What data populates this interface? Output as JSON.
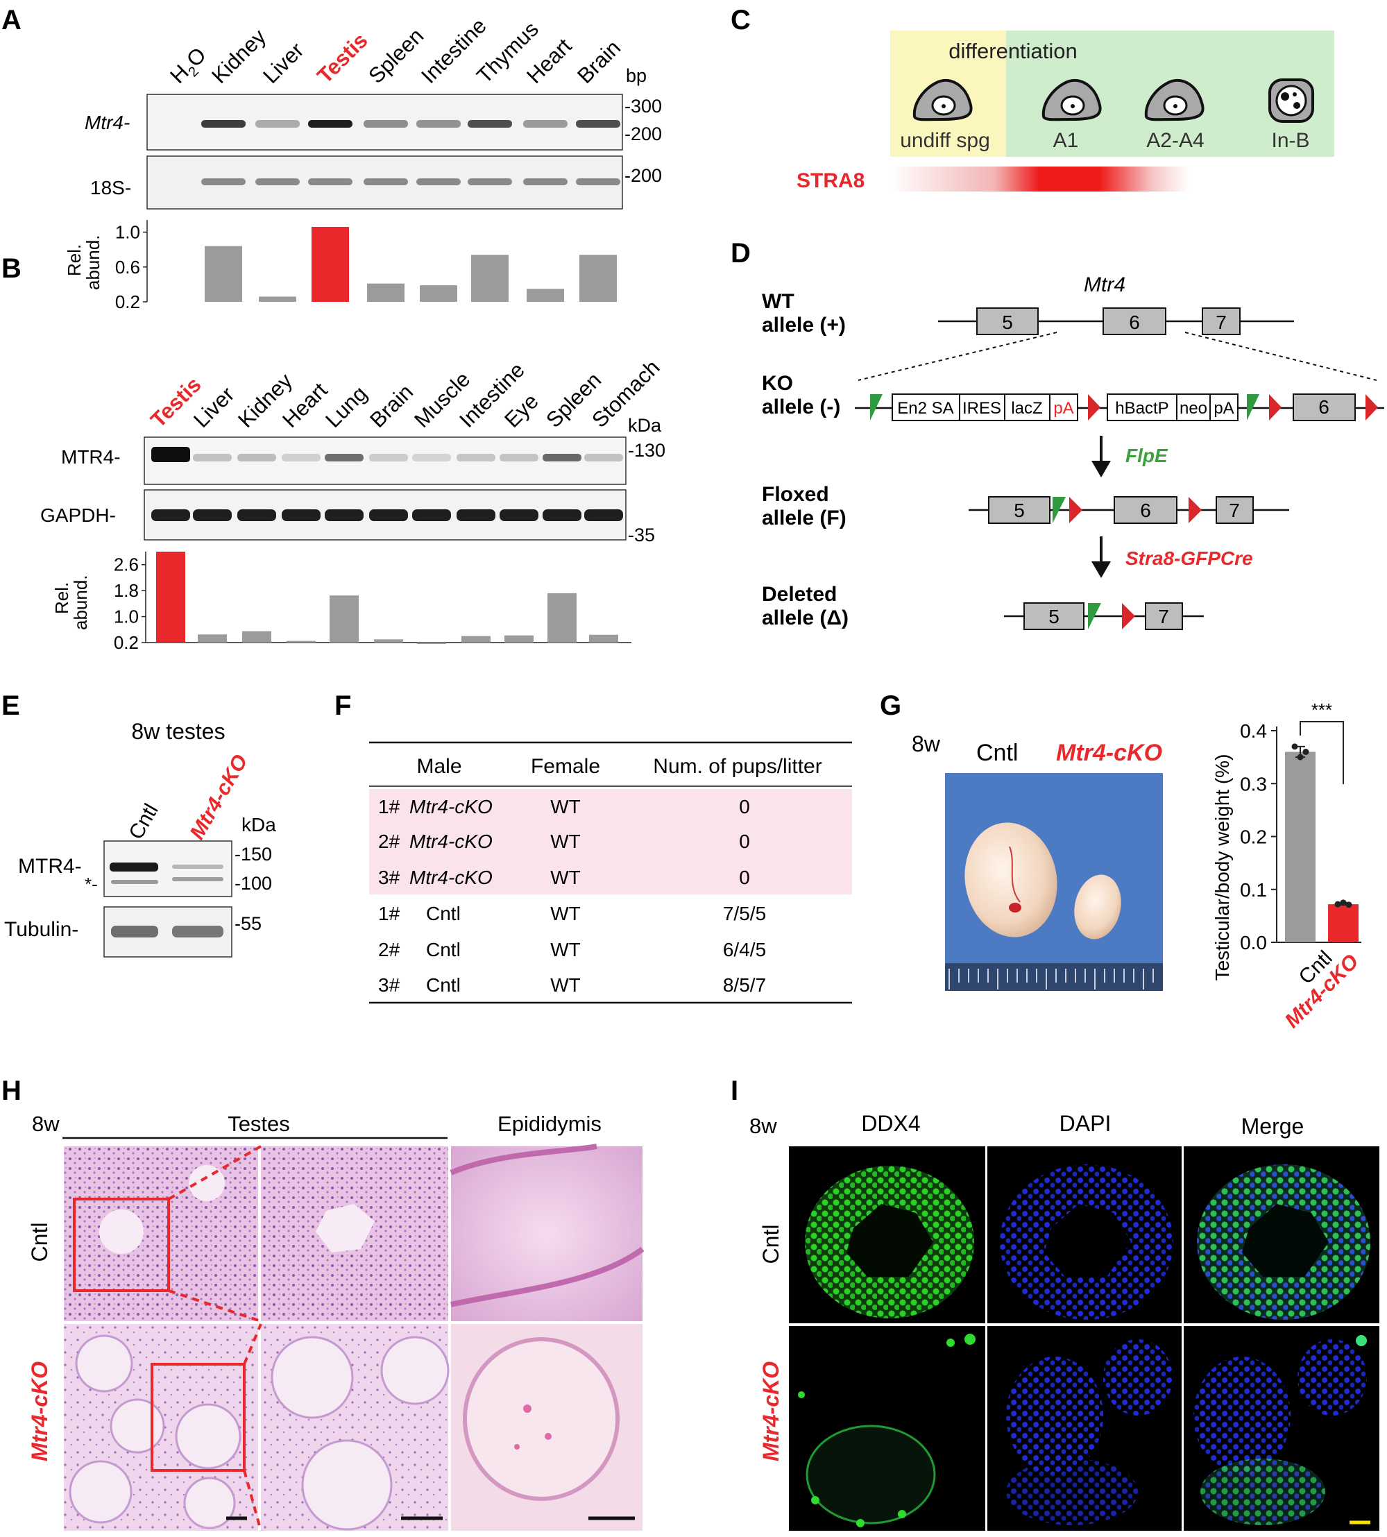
{
  "panels": {
    "A": "A",
    "B": "B",
    "C": "C",
    "D": "D",
    "E": "E",
    "F": "F",
    "G": "G",
    "H": "H",
    "I": "I"
  },
  "colors": {
    "red": "#e8282b",
    "gray": "#9b9b9d",
    "green": "#3ca03c",
    "yellow_bg": "#fbf6bd",
    "green_bg": "#cfeccc",
    "pink_row": "#fbe3ea"
  },
  "panelA": {
    "lanes": [
      "H2O",
      "Kidney",
      "Liver",
      "Testis",
      "Spleen",
      "Intestine",
      "Thymus",
      "Heart",
      "Brain"
    ],
    "h2o": {
      "main": "H",
      "sub": "2",
      "tail": "O"
    },
    "highlight": "Testis",
    "unit": "bp",
    "gel1_label": "Mtr4-",
    "gel2_label": "18S-",
    "markers1": [
      "-300",
      "-200"
    ],
    "markers2": [
      "-200"
    ],
    "ylabel_line1": "Rel.",
    "ylabel_line2": "abund.",
    "yticks": [
      "1.0",
      "0.6",
      "0.2"
    ]
  },
  "panelB": {
    "lanes": [
      "Testis",
      "Liver",
      "Kidney",
      "Heart",
      "Lung",
      "Brain",
      "Muscle",
      "Intestine",
      "Eye",
      "Spleen",
      "Stomach"
    ],
    "highlight": "Testis",
    "unit": "kDa",
    "blot1_label": "MTR4-",
    "blot2_label": "GAPDH-",
    "markers1": [
      "-130"
    ],
    "markers2": [
      "-35"
    ],
    "ylabel_line1": "Rel.",
    "ylabel_line2": "abund.",
    "yticks": [
      "2.6",
      "1.8",
      "1.0",
      "0.2"
    ]
  },
  "panelC": {
    "header": "differentiation",
    "stages": [
      "undiff spg",
      "A1",
      "A2-A4",
      "In-B"
    ],
    "marker": "STRA8"
  },
  "panelD": {
    "gene": "Mtr4",
    "alleles": [
      {
        "line1": "WT",
        "line2": "allele (+)"
      },
      {
        "line1": "KO",
        "line2": "allele (-)"
      },
      {
        "line1": "Floxed",
        "line2": "allele (F)"
      },
      {
        "line1": "Deleted",
        "line2": "allele (Δ)"
      }
    ],
    "exons": [
      "5",
      "6",
      "7"
    ],
    "cassette": [
      "En2 SA",
      "IRES",
      "lacZ",
      "pA",
      "hBactP",
      "neo",
      "pA"
    ],
    "step1": "FlpE",
    "step2": "Stra8-GFPCre"
  },
  "panelE": {
    "title": "8w testes",
    "lanes": [
      "Cntl",
      "Mtr4-cKO"
    ],
    "unit": "kDa",
    "blot1_label": "MTR4-",
    "star": "*-",
    "blot2_label": "Tubulin-",
    "markers1": [
      "-150",
      "-100"
    ],
    "markers2": [
      "-55"
    ]
  },
  "panelF": {
    "headers": [
      "Male",
      "Female",
      "Num. of pups/litter"
    ],
    "rows": [
      {
        "num": "1#",
        "male": "Mtr4-cKO",
        "female": "WT",
        "pups": "0"
      },
      {
        "num": "2#",
        "male": "Mtr4-cKO",
        "female": "WT",
        "pups": "0"
      },
      {
        "num": "3#",
        "male": "Mtr4-cKO",
        "female": "WT",
        "pups": "0"
      },
      {
        "num": "1#",
        "male": "Cntl",
        "female": "WT",
        "pups": "7/5/5"
      },
      {
        "num": "2#",
        "male": "Cntl",
        "female": "WT",
        "pups": "6/4/5"
      },
      {
        "num": "3#",
        "male": "Cntl",
        "female": "WT",
        "pups": "8/5/7"
      }
    ]
  },
  "panelG": {
    "age": "8w",
    "cntl": "Cntl",
    "cko": "Mtr4-cKO",
    "sig": "***",
    "ylabel": "Testicular/body weight (%)"
  },
  "panelH": {
    "age": "8w",
    "group1": "Testes",
    "group2": "Epididymis",
    "rows": [
      "Cntl",
      "Mtr4-cKO"
    ]
  },
  "panelI": {
    "age": "8w",
    "channels": [
      "DDX4",
      "DAPI",
      "Merge"
    ],
    "rows": [
      "Cntl",
      "Mtr4-cKO"
    ]
  },
  "chart_data": [
    {
      "type": "bar",
      "categories": [
        "H2O",
        "Kidney",
        "Liver",
        "Testis",
        "Spleen",
        "Intestine",
        "Thymus",
        "Heart",
        "Brain"
      ],
      "values": [
        0.2,
        0.84,
        0.26,
        1.06,
        0.41,
        0.39,
        0.74,
        0.35,
        0.74
      ],
      "ylim": [
        0.2,
        1.1
      ],
      "yticks": [
        1.0,
        0.6,
        0.2
      ],
      "ylabel": "Rel. abund."
    },
    {
      "type": "bar",
      "categories": [
        "Testis",
        "Liver",
        "Kidney",
        "Heart",
        "Lung",
        "Brain",
        "Muscle",
        "Intestine",
        "Eye",
        "Spleen",
        "Stomach"
      ],
      "values": [
        3.0,
        0.45,
        0.55,
        0.25,
        1.65,
        0.3,
        0.2,
        0.4,
        0.42,
        1.72,
        0.44
      ],
      "ylim": [
        0.2,
        3.0
      ],
      "yticks": [
        2.6,
        1.8,
        1.0,
        0.2
      ],
      "ylabel": "Rel. abund."
    },
    {
      "type": "bar",
      "categories": [
        "Cntl",
        "Mtr4-cKO"
      ],
      "values": [
        0.36,
        0.072
      ],
      "points": [
        [
          0.37,
          0.35,
          0.36
        ],
        [
          0.072,
          0.075,
          0.071
        ]
      ],
      "ylim": [
        0.0,
        0.4
      ],
      "yticks": [
        0.0,
        0.1,
        0.2,
        0.3,
        0.4
      ],
      "ylabel": "Testicular/body weight (%)",
      "annotation": "***"
    }
  ]
}
